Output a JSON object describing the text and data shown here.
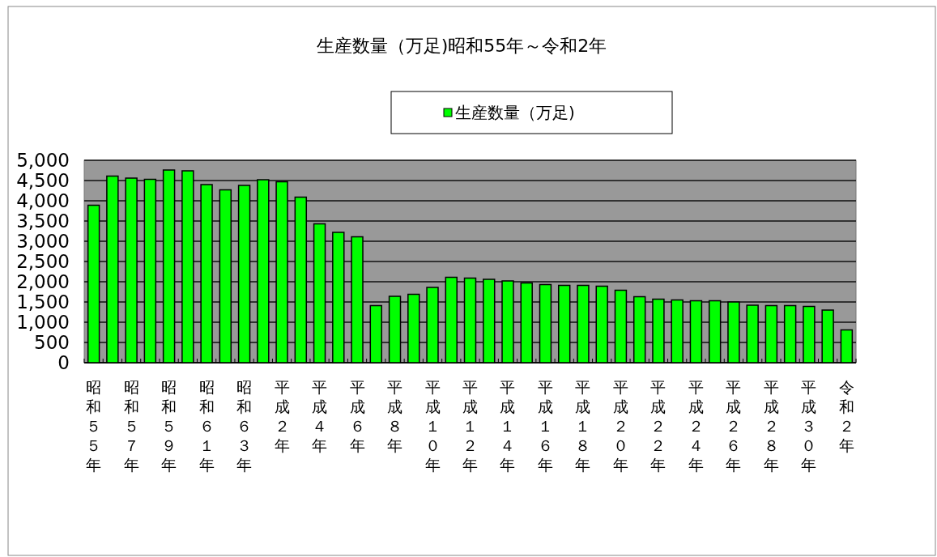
{
  "chart_data": {
    "type": "bar",
    "title": "生産数量（万足)昭和55年～令和2年",
    "categories": [
      "昭和５５年",
      null,
      "昭和５７年",
      null,
      "昭和５９年",
      null,
      "昭和６１年",
      null,
      "昭和６３年",
      null,
      "平成２年",
      null,
      "平成４年",
      null,
      "平成６年",
      null,
      "平成８年",
      null,
      "平成１０年",
      null,
      "平成１２年",
      null,
      "平成１４年",
      null,
      "平成１６年",
      null,
      "平成１８年",
      null,
      "平成２０年",
      null,
      "平成２２年",
      null,
      "平成２４年",
      null,
      "平成２６年",
      null,
      "平成２８年",
      null,
      "平成３０年",
      null,
      "令和２年"
    ],
    "series": [
      {
        "name": "生産数量（万足)",
        "color": "#00ff00",
        "values": [
          3890,
          4610,
          4560,
          4530,
          4760,
          4740,
          4400,
          4270,
          4380,
          4520,
          4470,
          4090,
          3430,
          3220,
          3110,
          1410,
          1640,
          1690,
          1860,
          2110,
          2090,
          2060,
          2020,
          1970,
          1930,
          1910,
          1910,
          1890,
          1790,
          1630,
          1570,
          1550,
          1530,
          1530,
          1500,
          1420,
          1410,
          1410,
          1390,
          1300,
          810
        ]
      }
    ],
    "ylim": [
      0,
      5000
    ],
    "yticks": [
      0,
      500,
      {
        "value": 1000,
        "label": "1,000"
      },
      {
        "value": 1500,
        "label": "1,500"
      },
      {
        "value": 2000,
        "label": "2,000"
      },
      {
        "value": 2500,
        "label": "2,500"
      },
      {
        "value": 3000,
        "label": "3,000"
      },
      {
        "value": 3500,
        "label": "3,500"
      },
      {
        "value": 4000,
        "label": "4,000"
      },
      {
        "value": 4500,
        "label": "4,500"
      },
      {
        "value": 5000,
        "label": "5,000"
      }
    ],
    "grid": "y",
    "legend": "top"
  }
}
